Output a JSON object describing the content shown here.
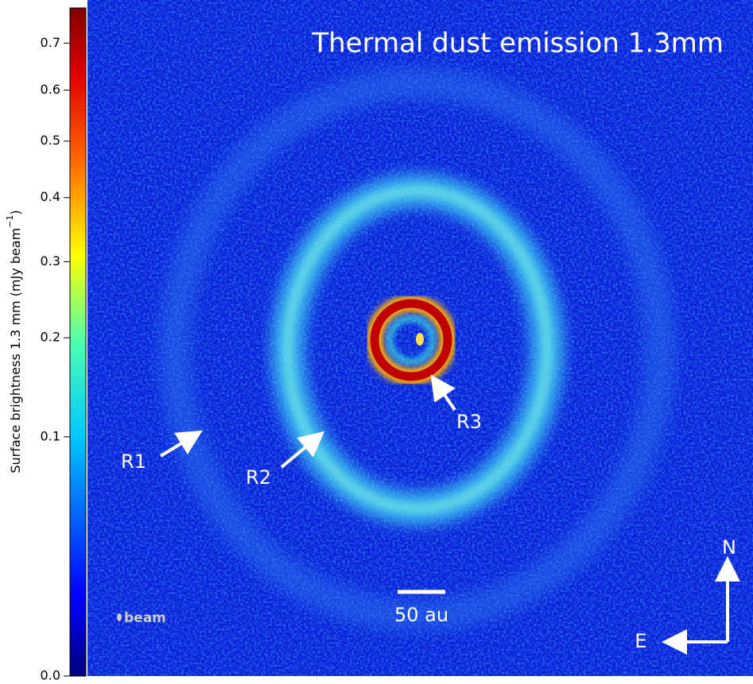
{
  "title": "Thermal dust emission 1.3mm",
  "colorbar": {
    "label": "Surface brightness 1.3 mm (mJy beam",
    "label_sup": "−1",
    "label_end": ")",
    "scale": "sqrt",
    "lim": [
      0,
      0.78
    ],
    "ticks": [
      {
        "value": 0,
        "label": "0.0"
      },
      0.1,
      0.2,
      0.3,
      0.4,
      0.5,
      0.6,
      0.7
    ]
  },
  "annotations": {
    "r1": "R1",
    "r2": "R2",
    "r3": "R3",
    "scale_bar": "50 au",
    "beam": "beam",
    "north": "N",
    "east": "E"
  }
}
